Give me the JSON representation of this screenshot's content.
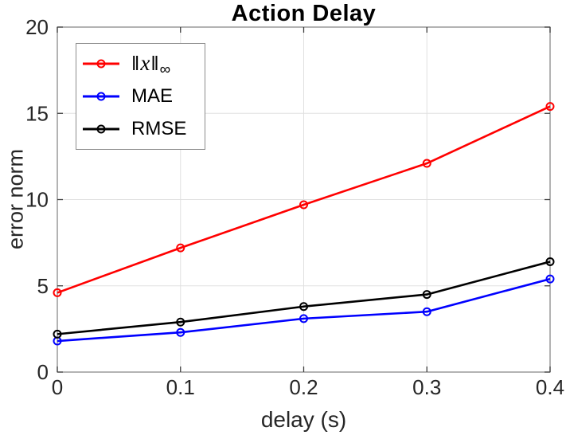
{
  "title": "Action Delay",
  "axes": {
    "xlabel": "delay (s)",
    "ylabel": "error norm",
    "xlim": [
      0,
      0.4
    ],
    "ylim": [
      0,
      20
    ],
    "xticks": [
      0,
      0.1,
      0.2,
      0.3,
      0.4
    ],
    "xtick_labels": [
      "0",
      "0.1",
      "0.2",
      "0.3",
      "0.4"
    ],
    "yticks": [
      0,
      5,
      10,
      15,
      20
    ],
    "ytick_labels": [
      "0",
      "5",
      "10",
      "15",
      "20"
    ],
    "grid": true
  },
  "legend": {
    "position": "upper-left",
    "items": [
      {
        "label": "‖x‖∞",
        "color": "#ff0000",
        "math": {
          "bar_left": "‖",
          "variable": "x",
          "bar_right": "‖",
          "subscript": "∞"
        }
      },
      {
        "label": "MAE",
        "color": "#0000ff"
      },
      {
        "label": "RMSE",
        "color": "#000000"
      }
    ]
  },
  "chart_data": {
    "type": "line",
    "title": "Action Delay",
    "xlabel": "delay (s)",
    "ylabel": "error norm",
    "xlim": [
      0,
      0.4
    ],
    "ylim": [
      0,
      20
    ],
    "grid": true,
    "legend_position": "upper-left",
    "x": [
      0,
      0.1,
      0.2,
      0.3,
      0.4
    ],
    "series": [
      {
        "name": "‖x‖∞",
        "color": "#ff0000",
        "marker": "o",
        "values": [
          4.6,
          7.2,
          9.7,
          12.1,
          15.4
        ]
      },
      {
        "name": "MAE",
        "color": "#0000ff",
        "marker": "o",
        "values": [
          1.8,
          2.3,
          3.1,
          3.5,
          5.4
        ]
      },
      {
        "name": "RMSE",
        "color": "#000000",
        "marker": "o",
        "values": [
          2.2,
          2.9,
          3.8,
          4.5,
          6.4
        ]
      }
    ]
  },
  "colors": {
    "axis_box": "#8a8a8a",
    "tick_mark": "#3f3f3f",
    "tick_label": "#262626",
    "grid_line": "#e0e0e0",
    "background": "#ffffff",
    "legend_border": "#8c8c8c"
  }
}
